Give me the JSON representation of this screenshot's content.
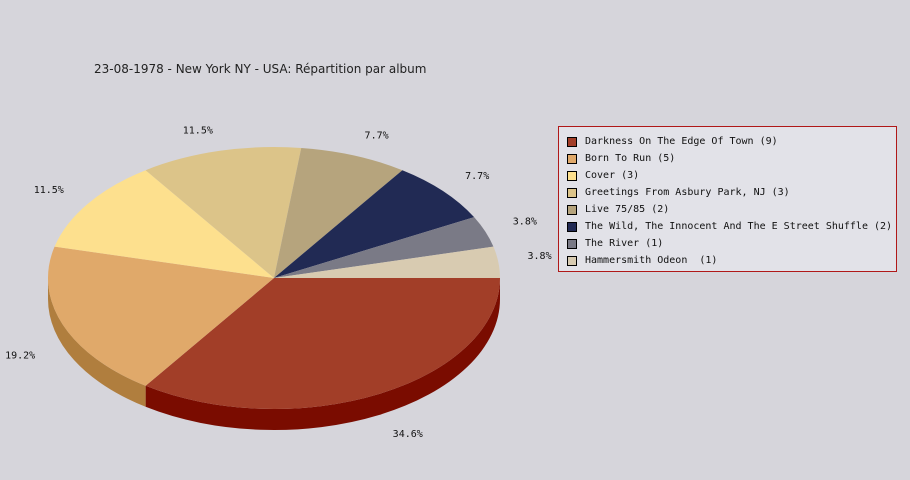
{
  "chart_data": {
    "type": "pie",
    "title": "23-08-1978 - New York NY - USA:  Répartition par album",
    "legend_position": "right",
    "slices": [
      {
        "name": "Darkness On The Edge Of Town",
        "value": 9,
        "percent_label": "34.6%",
        "color": "#a23e28",
        "side_color": "#7a0c00"
      },
      {
        "name": "Born To Run",
        "value": 5,
        "percent_label": "19.2%",
        "color": "#e0a96a",
        "side_color": "#b07e3e"
      },
      {
        "name": "Cover",
        "value": 3,
        "percent_label": "11.5%",
        "color": "#fde08e",
        "side_color": "#c8ad58"
      },
      {
        "name": "Greetings From Asbury Park, NJ",
        "value": 3,
        "percent_label": "11.5%",
        "color": "#dcc489",
        "side_color": "#a8925a"
      },
      {
        "name": "Live 75/85",
        "value": 2,
        "percent_label": "7.7%",
        "color": "#b6a47d",
        "side_color": "#887650"
      },
      {
        "name": "The Wild, The Innocent And The E Street Shuffle",
        "value": 2,
        "percent_label": "7.7%",
        "color": "#212a54",
        "side_color": "#0f1430"
      },
      {
        "name": "The River",
        "value": 1,
        "percent_label": "3.8%",
        "color": "#7a7a86",
        "side_color": "#55555f"
      },
      {
        "name": "Hammersmith Odeon",
        "value": 1,
        "percent_label": "3.8%",
        "color": "#d8cbb1",
        "side_color": "#a89a80"
      }
    ]
  },
  "legend": {
    "items": [
      {
        "label": "Darkness On The Edge Of Town (9)",
        "color": "#a23e28"
      },
      {
        "label": "Born To Run (5)",
        "color": "#e0a96a"
      },
      {
        "label": "Cover (3)",
        "color": "#fde08e"
      },
      {
        "label": "Greetings From Asbury Park, NJ (3)",
        "color": "#dcc489"
      },
      {
        "label": "Live 75/85 (2)",
        "color": "#b6a47d"
      },
      {
        "label": "The Wild, The Innocent And The E Street Shuffle (2)",
        "color": "#212a54"
      },
      {
        "label": "The River (1)",
        "color": "#7a7a86"
      },
      {
        "label": "Hammersmith Odeon  (1)",
        "color": "#d8cbb1"
      }
    ]
  }
}
